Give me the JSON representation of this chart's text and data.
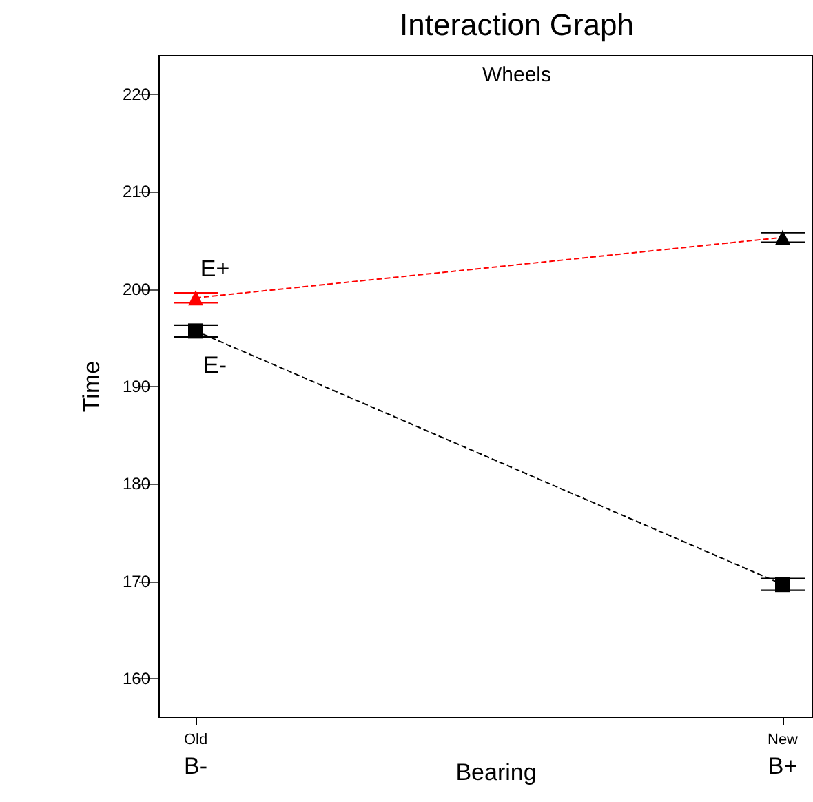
{
  "chart_data": {
    "type": "line",
    "title": "Interaction Graph",
    "subtitle": "Wheels",
    "xlabel": "Bearing",
    "ylabel": "Time",
    "categories": [
      "Old\nB-",
      "New\nB+"
    ],
    "series": [
      {
        "name": "E-",
        "color": "#000000",
        "marker": "square",
        "values": [
          195.7,
          169.7
        ],
        "errors": [
          0.6,
          0.6
        ]
      },
      {
        "name": "E+",
        "color": "#ff0000",
        "colors": [
          "#ff0000",
          "#000000"
        ],
        "marker": "triangle",
        "values": [
          199.1,
          205.3
        ],
        "errors": [
          0.5,
          0.5
        ]
      }
    ],
    "ylim": [
      156,
      224
    ],
    "yticks": [
      160,
      170,
      180,
      190,
      200,
      210,
      220
    ],
    "grid": false,
    "legend": false,
    "line_style": "dashed"
  }
}
